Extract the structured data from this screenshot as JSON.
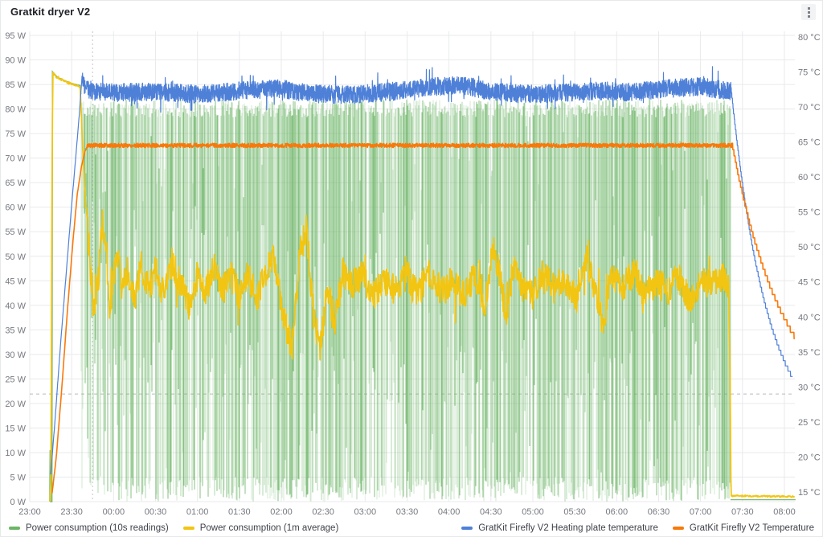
{
  "panel": {
    "title": "Gratkit dryer V2"
  },
  "legend": {
    "items": [
      {
        "label": "Power consumption (10s readings)",
        "color": "#6cb566"
      },
      {
        "label": "Power consumption (1m average)",
        "color": "#f2c513"
      },
      {
        "label": "GratKit Firefly V2 Heating plate temperature",
        "color": "#4e80d8"
      },
      {
        "label": "GratKit Firefly V2 Temperature",
        "color": "#f8790b"
      }
    ]
  },
  "chart_data": {
    "type": "line",
    "title": "Gratkit dryer V2",
    "x_axis": {
      "ticks": [
        "23:00",
        "23:30",
        "00:00",
        "00:30",
        "01:00",
        "01:30",
        "02:00",
        "02:30",
        "03:00",
        "03:30",
        "04:00",
        "04:30",
        "05:00",
        "05:30",
        "06:00",
        "06:30",
        "07:00",
        "07:30",
        "08:00"
      ],
      "start_minutes": 0,
      "end_minutes": 540,
      "minutes_origin": "23:00",
      "tick_step_minutes": 30
    },
    "y_left": {
      "unit": "W",
      "min": 0,
      "max": 95,
      "step": 5,
      "ticks": [
        "95 W",
        "90 W",
        "85 W",
        "80 W",
        "75 W",
        "70 W",
        "65 W",
        "60 W",
        "55 W",
        "50 W",
        "45 W",
        "40 W",
        "35 W",
        "30 W",
        "25 W",
        "20 W",
        "15 W",
        "10 W",
        "5 W",
        "0 W"
      ]
    },
    "y_right": {
      "unit": "°C",
      "min": 15,
      "max": 80,
      "step": 5,
      "ticks": [
        "80 °C",
        "75 °C",
        "70 °C",
        "65 °C",
        "60 °C",
        "55 °C",
        "50 °C",
        "45 °C",
        "40 °C",
        "35 °C",
        "30 °C",
        "25 °C",
        "20 °C",
        "15 °C"
      ]
    },
    "crosshair": {
      "time": "23:45",
      "t_minutes": 45,
      "value_c": 29
    },
    "grid": true,
    "series": [
      {
        "name": "Power consumption (10s readings)",
        "color": "#6cb566",
        "axis": "left",
        "style": "pwm-columns",
        "ramp_keypoints": [
          [
            14.3,
            0
          ],
          [
            14.6,
            10.5
          ],
          [
            14.9,
            0
          ],
          [
            15.9,
            0
          ],
          [
            16.3,
            87.6
          ],
          [
            20,
            86.4
          ],
          [
            25,
            85.8
          ],
          [
            30,
            85.2
          ],
          [
            36,
            84.8
          ],
          [
            36.6,
            83
          ]
        ],
        "pwm": {
          "t_start": 36.6,
          "t_end": 501.3,
          "top_w_max": 82,
          "top_w_typical": 80,
          "bottom_w": 0,
          "density_keypoints": [
            [
              37,
              0.3
            ],
            [
              60,
              0.42
            ],
            [
              90,
              0.5
            ],
            [
              120,
              0.55
            ],
            [
              150,
              0.62
            ],
            [
              190,
              0.72
            ],
            [
              220,
              0.66
            ],
            [
              260,
              0.6
            ],
            [
              300,
              0.63
            ],
            [
              340,
              0.68
            ],
            [
              380,
              0.72
            ],
            [
              420,
              0.7
            ],
            [
              460,
              0.66
            ],
            [
              500,
              0.62
            ]
          ]
        },
        "tail_keypoints": [
          [
            501.4,
            0.4
          ],
          [
            548,
            0.4
          ]
        ]
      },
      {
        "name": "Power consumption (1m average)",
        "color": "#f2c513",
        "axis": "left",
        "style": "noisy-line",
        "noise_w": 3.1,
        "keypoints": [
          [
            14.5,
            0
          ],
          [
            15.2,
            5
          ],
          [
            15.8,
            58
          ],
          [
            16.5,
            87.3
          ],
          [
            19,
            86.6
          ],
          [
            23,
            86
          ],
          [
            28,
            85.3
          ],
          [
            33,
            84.8
          ],
          [
            36,
            84.5
          ],
          [
            37.5,
            76
          ],
          [
            39,
            66
          ],
          [
            41,
            57
          ],
          [
            43.5,
            47
          ],
          [
            46,
            39
          ],
          [
            49,
            45
          ],
          [
            52,
            57
          ],
          [
            55,
            50
          ],
          [
            57,
            39
          ],
          [
            60,
            45
          ],
          [
            63,
            51
          ],
          [
            66,
            43
          ],
          [
            70,
            47
          ],
          [
            75,
            41
          ],
          [
            80,
            48
          ],
          [
            85,
            43
          ],
          [
            90,
            47
          ],
          [
            96,
            42
          ],
          [
            102,
            49
          ],
          [
            108,
            44
          ],
          [
            114,
            40
          ],
          [
            120,
            46
          ],
          [
            126,
            43
          ],
          [
            132,
            48
          ],
          [
            138,
            43
          ],
          [
            144,
            46
          ],
          [
            150,
            42
          ],
          [
            156,
            47
          ],
          [
            162,
            41
          ],
          [
            168,
            46
          ],
          [
            174,
            50
          ],
          [
            178,
            44
          ],
          [
            183,
            36
          ],
          [
            188,
            31
          ],
          [
            193,
            50
          ],
          [
            198,
            56
          ],
          [
            203,
            38
          ],
          [
            208,
            31
          ],
          [
            213,
            44
          ],
          [
            218,
            36
          ],
          [
            224,
            47
          ],
          [
            230,
            44
          ],
          [
            238,
            46
          ],
          [
            246,
            42
          ],
          [
            254,
            45
          ],
          [
            262,
            43
          ],
          [
            270,
            46
          ],
          [
            278,
            42
          ],
          [
            286,
            47
          ],
          [
            294,
            43
          ],
          [
            302,
            45
          ],
          [
            310,
            42
          ],
          [
            318,
            46
          ],
          [
            326,
            40
          ],
          [
            331,
            52
          ],
          [
            336,
            47
          ],
          [
            341,
            37
          ],
          [
            346,
            48
          ],
          [
            352,
            44
          ],
          [
            360,
            42
          ],
          [
            368,
            47
          ],
          [
            376,
            43
          ],
          [
            384,
            45
          ],
          [
            392,
            41
          ],
          [
            398,
            50
          ],
          [
            404,
            44
          ],
          [
            410,
            36
          ],
          [
            416,
            46
          ],
          [
            424,
            43
          ],
          [
            432,
            47
          ],
          [
            440,
            42
          ],
          [
            448,
            45
          ],
          [
            456,
            43
          ],
          [
            464,
            46
          ],
          [
            472,
            41
          ],
          [
            480,
            45
          ],
          [
            488,
            44
          ],
          [
            495,
            46
          ],
          [
            500,
            44
          ],
          [
            501,
            30
          ],
          [
            501.8,
            1.2
          ],
          [
            548,
            1
          ]
        ]
      },
      {
        "name": "GratKit Firefly V2 Heating plate temperature",
        "color": "#4e80d8",
        "axis": "right",
        "style": "noisy-line",
        "noise_c": 1.3,
        "ramp_keypoints": [
          [
            15,
            17.5
          ],
          [
            18,
            25
          ],
          [
            22,
            36
          ],
          [
            26,
            46
          ],
          [
            30,
            56
          ],
          [
            33,
            63
          ],
          [
            35.5,
            69
          ],
          [
            37.5,
            74.6
          ]
        ],
        "band_keypoints": [
          [
            37.5,
            74.6
          ],
          [
            38.5,
            73.4
          ],
          [
            40,
            72.6
          ],
          [
            44,
            72.2
          ],
          [
            60,
            72.0
          ],
          [
            90,
            72.2
          ],
          [
            120,
            71.8
          ],
          [
            150,
            72.3
          ],
          [
            180,
            72.6
          ],
          [
            200,
            71.9
          ],
          [
            230,
            71.7
          ],
          [
            260,
            72.2
          ],
          [
            290,
            72.9
          ],
          [
            310,
            73.1
          ],
          [
            330,
            72.2
          ],
          [
            355,
            71.8
          ],
          [
            380,
            72.0
          ],
          [
            405,
            72.3
          ],
          [
            430,
            72.1
          ],
          [
            455,
            72.6
          ],
          [
            480,
            72.9
          ],
          [
            495,
            72.4
          ],
          [
            501.5,
            72.2
          ]
        ],
        "cooldown": {
          "t_start": 501.5,
          "t_end": 546,
          "from_c": 73.4,
          "asymptote_c": 22,
          "tau_min": 26,
          "step_c": 0.75,
          "end_value_c": 31
        }
      },
      {
        "name": "GratKit Firefly V2 Temperature",
        "color": "#f8790b",
        "axis": "right",
        "style": "noisy-line",
        "ramp_keypoints": [
          [
            16,
            14.8
          ],
          [
            19,
            20
          ],
          [
            23,
            30
          ],
          [
            27,
            41
          ],
          [
            31,
            51
          ],
          [
            34,
            57.5
          ],
          [
            37,
            61.5
          ],
          [
            39.5,
            63.6
          ],
          [
            41,
            64.3
          ]
        ],
        "band_level_c": 64.5,
        "band_noise_c": 0.3,
        "band_t_end": 502.5,
        "cooldown": {
          "t_start": 502.5,
          "t_end": 547.5,
          "from_c": 64.8,
          "asymptote_c": 25,
          "tau_min": 38,
          "step_c": 0.9,
          "end_value_c": 36
        }
      }
    ]
  }
}
